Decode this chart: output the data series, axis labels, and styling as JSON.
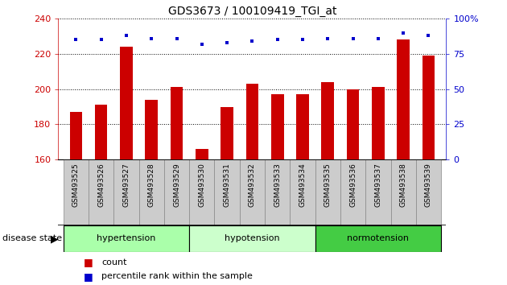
{
  "title": "GDS3673 / 100109419_TGI_at",
  "samples": [
    "GSM493525",
    "GSM493526",
    "GSM493527",
    "GSM493528",
    "GSM493529",
    "GSM493530",
    "GSM493531",
    "GSM493532",
    "GSM493533",
    "GSM493534",
    "GSM493535",
    "GSM493536",
    "GSM493537",
    "GSM493538",
    "GSM493539"
  ],
  "bar_values": [
    187,
    191,
    224,
    194,
    201,
    166,
    190,
    203,
    197,
    197,
    204,
    200,
    201,
    228,
    219
  ],
  "percentile_values": [
    85,
    85,
    88,
    86,
    86,
    82,
    83,
    84,
    85,
    85,
    86,
    86,
    86,
    90,
    88
  ],
  "bar_color": "#cc0000",
  "dot_color": "#0000cc",
  "ylim_left": [
    160,
    240
  ],
  "ylim_right": [
    0,
    100
  ],
  "yticks_left": [
    160,
    180,
    200,
    220,
    240
  ],
  "yticks_right": [
    0,
    25,
    50,
    75,
    100
  ],
  "groups": [
    {
      "label": "hypertension",
      "start": 0,
      "end": 5,
      "color": "#aaffaa"
    },
    {
      "label": "hypotension",
      "start": 5,
      "end": 10,
      "color": "#ccffcc"
    },
    {
      "label": "normotension",
      "start": 10,
      "end": 15,
      "color": "#44cc44"
    }
  ],
  "legend_items": [
    {
      "label": "count",
      "color": "#cc0000"
    },
    {
      "label": "percentile rank within the sample",
      "color": "#0000cc"
    }
  ],
  "bar_width": 0.5,
  "background_color": "#ffffff",
  "tick_label_color_left": "#cc0000",
  "tick_label_color_right": "#0000cc",
  "tickbox_color": "#cccccc",
  "tickbox_edge_color": "#888888"
}
